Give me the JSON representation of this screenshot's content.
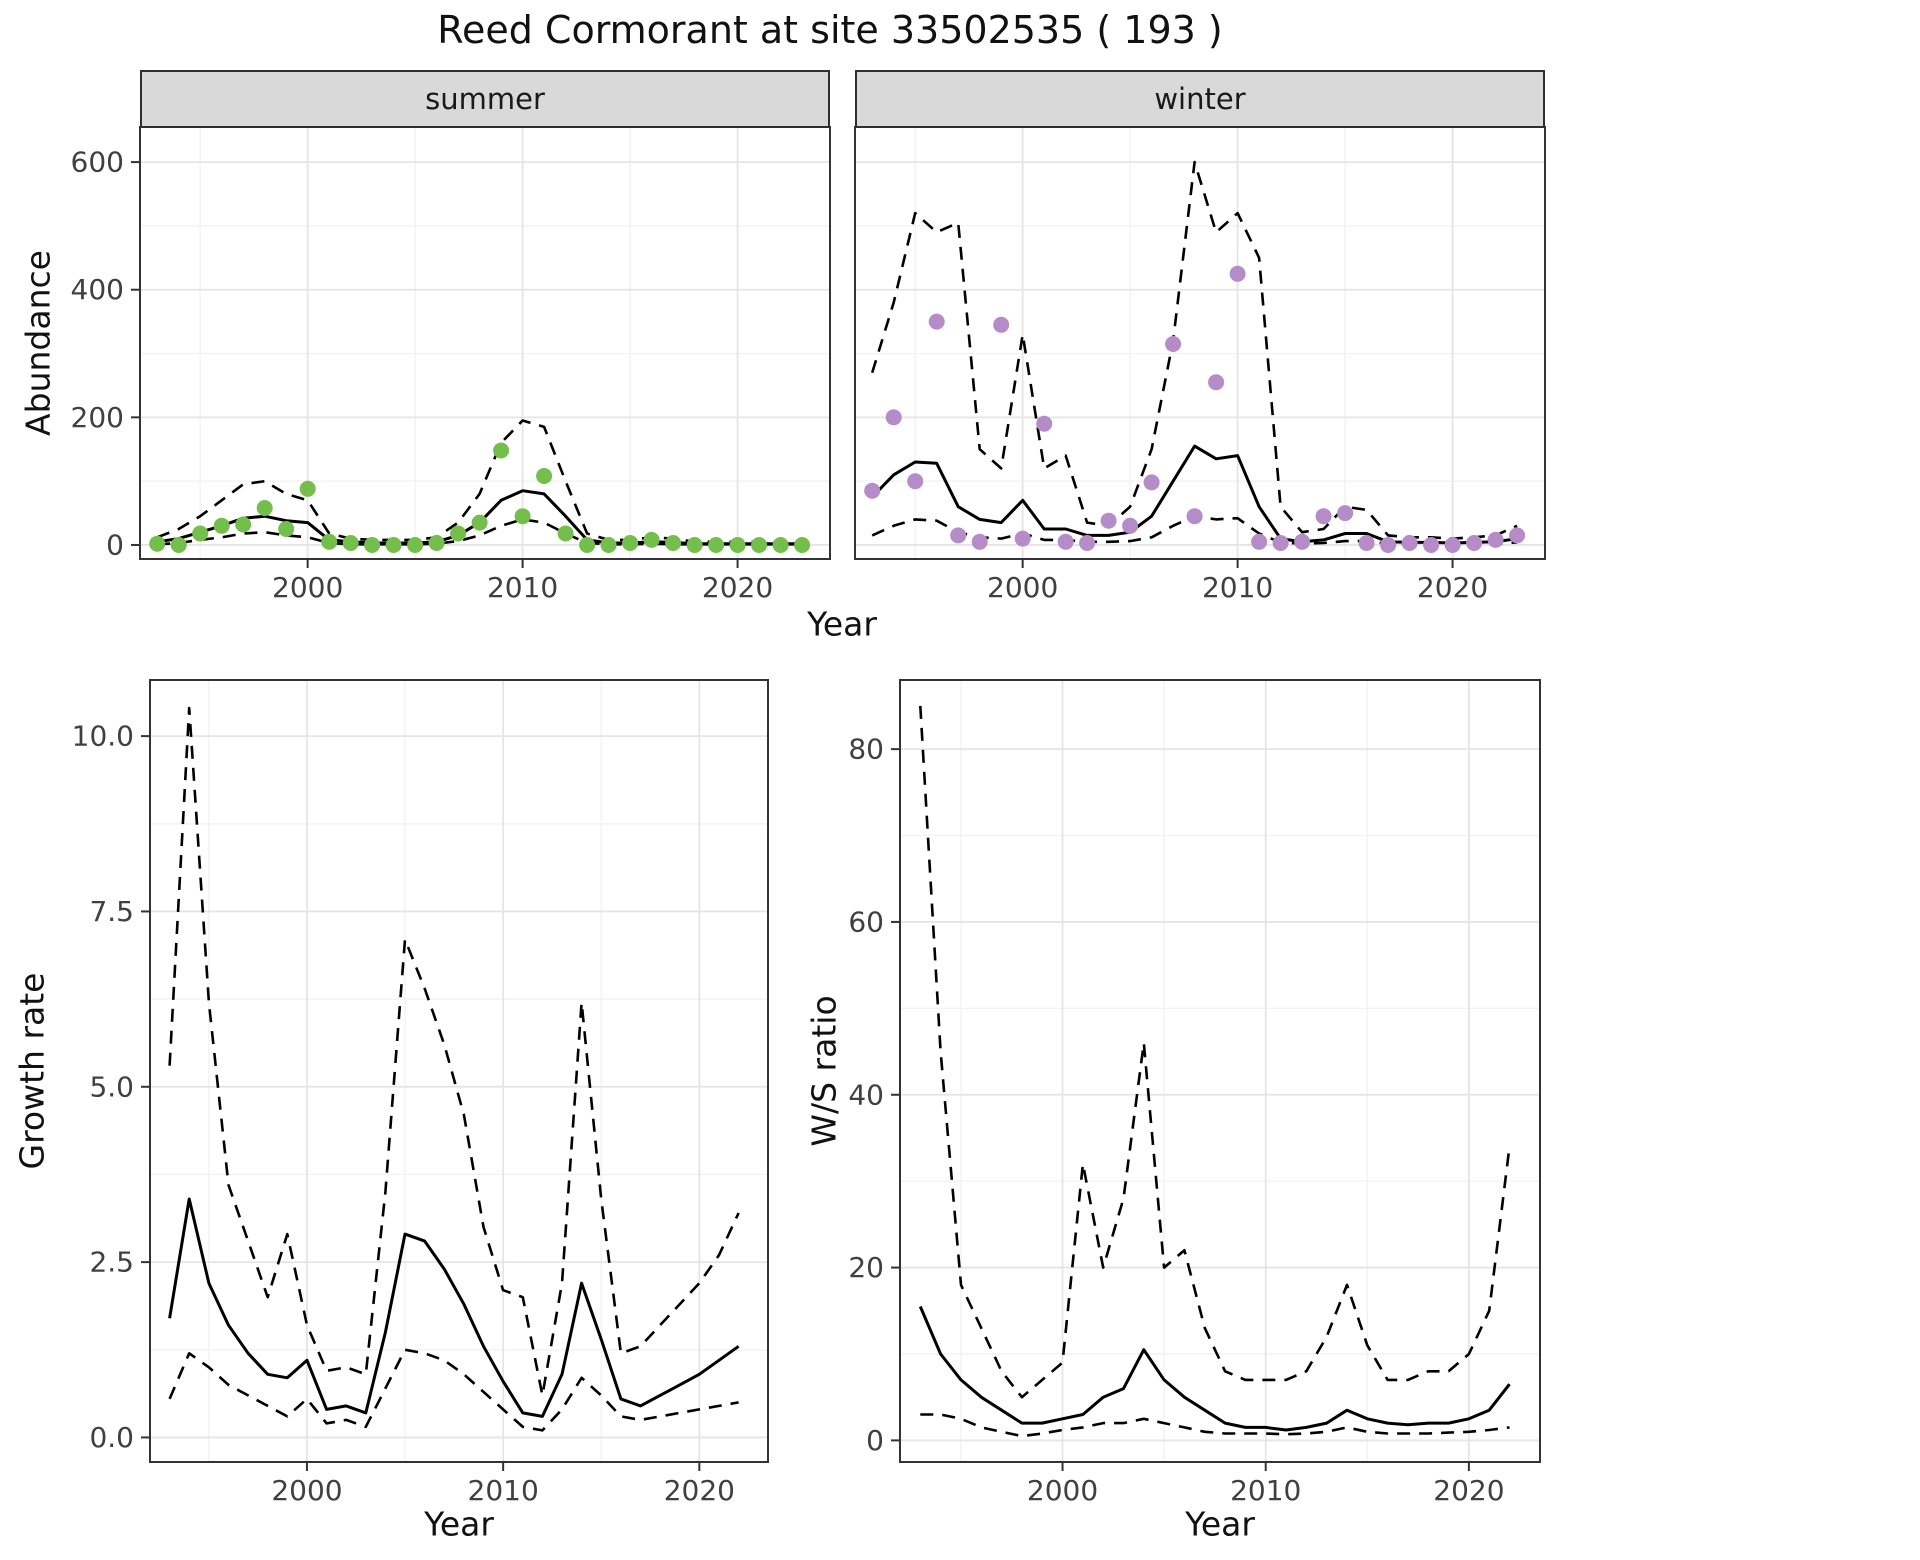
{
  "title": "Reed Cormorant at site 33502535 ( 193 )",
  "colors": {
    "summer_points": "#74BE4B",
    "winter_points": "#B58BC8",
    "line": "#000000",
    "strip_bg": "#D9D9D9",
    "panel_border": "#333333",
    "grid_major": "#E5E5E5",
    "grid_minor": "#F2F2F2"
  },
  "chart_data": [
    {
      "id": "abundance-summer",
      "type": "line",
      "facet_label": "summer",
      "xlabel": "Year",
      "ylabel": "Abundance",
      "xlim": [
        1992.2,
        2024.3
      ],
      "ylim": [
        -22,
        655
      ],
      "xticks": [
        2000,
        2010,
        2020
      ],
      "xtick_labels": [
        "2000",
        "2010",
        "2020"
      ],
      "yticks": [
        0,
        200,
        400,
        600
      ],
      "ytick_labels": [
        "0",
        "200",
        "400",
        "600"
      ],
      "grid": true,
      "legend": "none",
      "x": [
        1993,
        1994,
        1995,
        1996,
        1997,
        1998,
        1999,
        2000,
        2001,
        2002,
        2003,
        2004,
        2005,
        2006,
        2007,
        2008,
        2009,
        2010,
        2011,
        2012,
        2013,
        2014,
        2015,
        2016,
        2017,
        2018,
        2019,
        2020,
        2021,
        2022,
        2023
      ],
      "series": [
        {
          "name": "fit",
          "style": "solid",
          "color": "#000000",
          "values": [
            5,
            10,
            20,
            30,
            42,
            45,
            38,
            35,
            8,
            5,
            3,
            3,
            3,
            5,
            15,
            35,
            70,
            85,
            80,
            45,
            8,
            3,
            3,
            5,
            4,
            2,
            2,
            2,
            2,
            2,
            2
          ]
        },
        {
          "name": "upper-ci",
          "style": "dashed",
          "color": "#000000",
          "values": [
            12,
            25,
            45,
            70,
            95,
            100,
            80,
            70,
            18,
            10,
            8,
            8,
            8,
            12,
            35,
            80,
            160,
            195,
            185,
            100,
            18,
            8,
            8,
            12,
            10,
            5,
            5,
            5,
            5,
            5,
            5
          ]
        },
        {
          "name": "lower-ci",
          "style": "dashed",
          "color": "#000000",
          "values": [
            1,
            3,
            8,
            12,
            18,
            20,
            15,
            12,
            3,
            1,
            1,
            1,
            1,
            2,
            6,
            15,
            30,
            40,
            35,
            18,
            3,
            1,
            1,
            2,
            1,
            1,
            1,
            1,
            1,
            1,
            1
          ]
        },
        {
          "name": "observed-counts",
          "style": "points",
          "color": "#74BE4B",
          "values": [
            2,
            0,
            18,
            30,
            32,
            58,
            25,
            88,
            5,
            3,
            0,
            0,
            0,
            3,
            18,
            35,
            148,
            45,
            108,
            18,
            0,
            0,
            3,
            8,
            3,
            0,
            0,
            0,
            0,
            0,
            0
          ]
        }
      ]
    },
    {
      "id": "abundance-winter",
      "type": "line",
      "facet_label": "winter",
      "xlabel": "Year",
      "ylabel": "Abundance",
      "xlim": [
        1992.2,
        2024.3
      ],
      "ylim": [
        -22,
        655
      ],
      "xticks": [
        2000,
        2010,
        2020
      ],
      "xtick_labels": [
        "2000",
        "2010",
        "2020"
      ],
      "yticks": [
        0,
        200,
        400,
        600
      ],
      "ytick_labels": [
        "0",
        "200",
        "400",
        "600"
      ],
      "grid": true,
      "legend": "none",
      "x": [
        1993,
        1994,
        1995,
        1996,
        1997,
        1998,
        1999,
        2000,
        2001,
        2002,
        2003,
        2004,
        2005,
        2006,
        2007,
        2008,
        2009,
        2010,
        2011,
        2012,
        2013,
        2014,
        2015,
        2016,
        2017,
        2018,
        2019,
        2020,
        2021,
        2022,
        2023
      ],
      "series": [
        {
          "name": "fit",
          "style": "solid",
          "color": "#000000",
          "values": [
            75,
            110,
            130,
            128,
            60,
            40,
            35,
            70,
            25,
            25,
            15,
            15,
            20,
            45,
            100,
            155,
            135,
            140,
            60,
            10,
            5,
            8,
            18,
            18,
            5,
            4,
            4,
            3,
            4,
            5,
            10
          ]
        },
        {
          "name": "upper-ci",
          "style": "dashed",
          "color": "#000000",
          "values": [
            270,
            380,
            520,
            490,
            505,
            150,
            120,
            330,
            120,
            140,
            35,
            30,
            60,
            150,
            320,
            600,
            490,
            520,
            450,
            60,
            20,
            25,
            60,
            55,
            15,
            12,
            12,
            10,
            12,
            15,
            30
          ]
        },
        {
          "name": "lower-ci",
          "style": "dashed",
          "color": "#000000",
          "values": [
            15,
            30,
            40,
            38,
            20,
            12,
            10,
            18,
            8,
            8,
            5,
            5,
            6,
            12,
            30,
            45,
            40,
            42,
            18,
            4,
            2,
            3,
            6,
            6,
            2,
            2,
            2,
            1,
            2,
            2,
            4
          ]
        },
        {
          "name": "observed-counts",
          "style": "points",
          "color": "#B58BC8",
          "values": [
            85,
            200,
            100,
            350,
            15,
            5,
            345,
            10,
            190,
            5,
            3,
            38,
            30,
            98,
            315,
            45,
            255,
            425,
            5,
            3,
            5,
            45,
            50,
            3,
            0,
            3,
            0,
            0,
            3,
            8,
            15
          ]
        }
      ]
    },
    {
      "id": "growth-rate",
      "type": "line",
      "facet_label": "",
      "xlabel": "Year",
      "ylabel": "Growth rate",
      "xlim": [
        1992,
        2023.5
      ],
      "ylim": [
        -0.35,
        10.8
      ],
      "xticks": [
        2000,
        2010,
        2020
      ],
      "xtick_labels": [
        "2000",
        "2010",
        "2020"
      ],
      "yticks": [
        0,
        2.5,
        5,
        7.5,
        10
      ],
      "ytick_labels": [
        "0.0",
        "2.5",
        "5.0",
        "7.5",
        "10.0"
      ],
      "grid": true,
      "legend": "none",
      "x": [
        1993,
        1994,
        1995,
        1996,
        1997,
        1998,
        1999,
        2000,
        2001,
        2002,
        2003,
        2004,
        2005,
        2006,
        2007,
        2008,
        2009,
        2010,
        2011,
        2012,
        2013,
        2014,
        2015,
        2016,
        2017,
        2018,
        2019,
        2020,
        2021,
        2022
      ],
      "series": [
        {
          "name": "fit",
          "style": "solid",
          "color": "#000000",
          "values": [
            1.7,
            3.4,
            2.2,
            1.6,
            1.2,
            0.9,
            0.85,
            1.1,
            0.4,
            0.45,
            0.35,
            1.5,
            2.9,
            2.8,
            2.4,
            1.9,
            1.3,
            0.8,
            0.35,
            0.3,
            0.9,
            2.2,
            1.4,
            0.55,
            0.45,
            0.6,
            0.75,
            0.9,
            1.1,
            1.3
          ]
        },
        {
          "name": "upper-ci",
          "style": "dashed",
          "color": "#000000",
          "values": [
            5.3,
            10.4,
            6.2,
            3.6,
            2.8,
            2.0,
            2.9,
            1.6,
            0.95,
            1.0,
            0.9,
            3.5,
            7.1,
            6.4,
            5.6,
            4.6,
            3.0,
            2.1,
            2.0,
            0.6,
            2.2,
            6.2,
            3.4,
            1.2,
            1.3,
            1.6,
            1.9,
            2.2,
            2.6,
            3.2
          ]
        },
        {
          "name": "lower-ci",
          "style": "dashed",
          "color": "#000000",
          "values": [
            0.55,
            1.2,
            1.0,
            0.75,
            0.6,
            0.45,
            0.3,
            0.55,
            0.2,
            0.25,
            0.15,
            0.7,
            1.25,
            1.2,
            1.1,
            0.9,
            0.65,
            0.4,
            0.15,
            0.1,
            0.4,
            0.85,
            0.6,
            0.3,
            0.25,
            0.3,
            0.35,
            0.4,
            0.45,
            0.5
          ]
        }
      ]
    },
    {
      "id": "ws-ratio",
      "type": "line",
      "facet_label": "",
      "xlabel": "Year",
      "ylabel": "W/S ratio",
      "xlim": [
        1992,
        2023.5
      ],
      "ylim": [
        -2.5,
        88
      ],
      "xticks": [
        2000,
        2010,
        2020
      ],
      "xtick_labels": [
        "2000",
        "2010",
        "2020"
      ],
      "yticks": [
        0,
        20,
        40,
        60,
        80
      ],
      "ytick_labels": [
        "0",
        "20",
        "40",
        "60",
        "80"
      ],
      "grid": true,
      "legend": "none",
      "x": [
        1993,
        1994,
        1995,
        1996,
        1997,
        1998,
        1999,
        2000,
        2001,
        2002,
        2003,
        2004,
        2005,
        2006,
        2007,
        2008,
        2009,
        2010,
        2011,
        2012,
        2013,
        2014,
        2015,
        2016,
        2017,
        2018,
        2019,
        2020,
        2021,
        2022
      ],
      "series": [
        {
          "name": "fit",
          "style": "solid",
          "color": "#000000",
          "values": [
            15.5,
            10,
            7,
            5,
            3.5,
            2,
            2,
            2.5,
            3,
            5,
            6,
            10.5,
            7,
            5,
            3.5,
            2,
            1.5,
            1.5,
            1.2,
            1.5,
            2,
            3.5,
            2.5,
            2,
            1.8,
            2,
            2,
            2.5,
            3.5,
            6.5
          ]
        },
        {
          "name": "upper-ci",
          "style": "dashed",
          "color": "#000000",
          "values": [
            85,
            45,
            18,
            13,
            8,
            5,
            7,
            9,
            32,
            20,
            28,
            46,
            20,
            22,
            13,
            8,
            7,
            7,
            7,
            8,
            12,
            18,
            11,
            7,
            7,
            8,
            8,
            10,
            15,
            34
          ]
        },
        {
          "name": "lower-ci",
          "style": "dashed",
          "color": "#000000",
          "values": [
            3,
            3,
            2.5,
            1.5,
            1,
            0.5,
            0.8,
            1.2,
            1.5,
            2,
            2,
            2.5,
            2,
            1.5,
            1,
            0.8,
            0.8,
            0.8,
            0.7,
            0.8,
            1,
            1.5,
            1,
            0.8,
            0.8,
            0.8,
            0.9,
            1,
            1.2,
            1.5
          ]
        }
      ]
    }
  ]
}
